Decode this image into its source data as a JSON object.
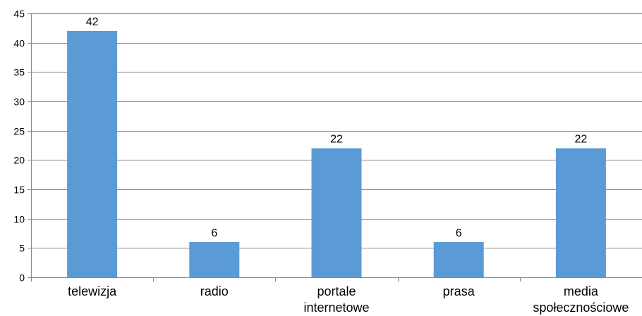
{
  "chart_data": {
    "type": "bar",
    "title": "",
    "xlabel": "",
    "ylabel": "",
    "categories": [
      [
        "telewizja"
      ],
      [
        "radio"
      ],
      [
        "portale",
        "internetowe"
      ],
      [
        "prasa"
      ],
      [
        "media",
        "społecznościowe"
      ]
    ],
    "values": [
      42,
      6,
      22,
      6,
      22
    ],
    "ylim": [
      0,
      45
    ],
    "yticks": [
      0,
      5,
      10,
      15,
      20,
      25,
      30,
      35,
      40,
      45
    ],
    "grid": "horizontal",
    "legend": "none",
    "data_labels": true,
    "bar_color": "#5B9BD5",
    "grid_color": "#888888",
    "axis_color": "#888888"
  }
}
